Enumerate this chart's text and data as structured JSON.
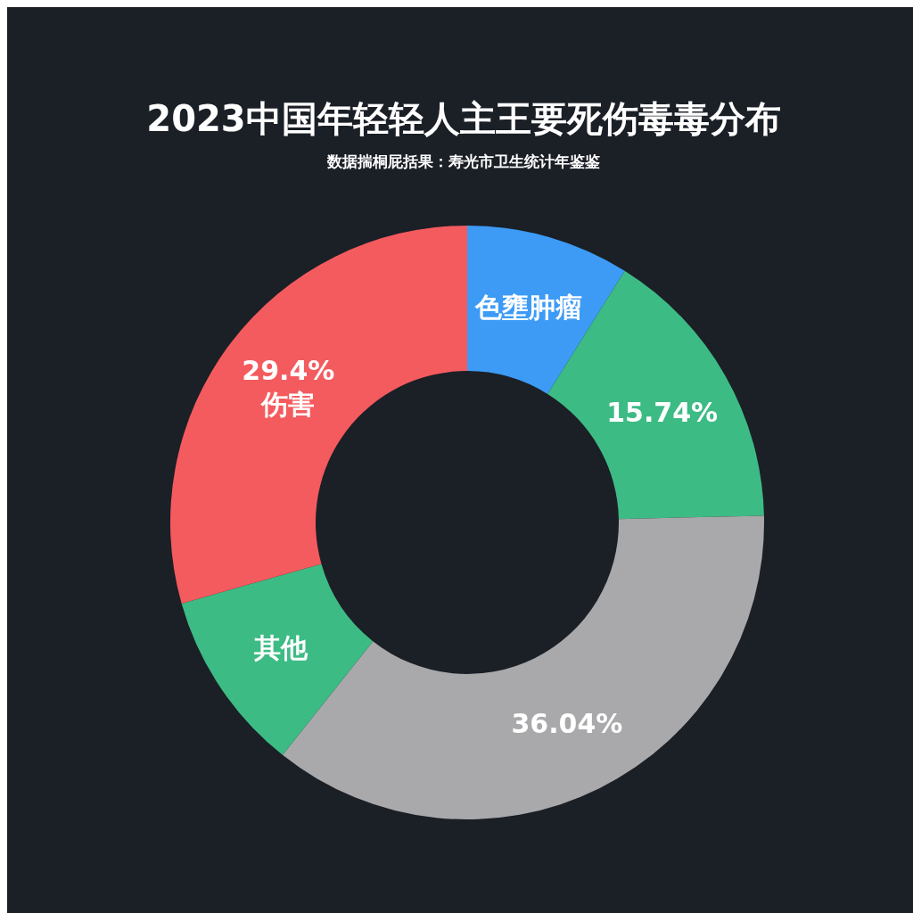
{
  "chart_data": {
    "type": "donut",
    "title": "2023中国年轻轻人主王要死伤毒毒分布",
    "subtitle": "数据揣桐屁括果：寿光市卫生统计年鉴鉴",
    "categories": [
      "色壅肿瘤",
      null,
      null,
      "其他",
      "伤害"
    ],
    "values": [
      8.9,
      15.74,
      36.04,
      9.92,
      29.4
    ],
    "value_labels": [
      null,
      "15.74%",
      "36.04%",
      null,
      "29.4%"
    ],
    "colors": [
      "#3d9bf5",
      "#3dbb84",
      "#a9a9ab",
      "#3dbb84",
      "#f45b5e"
    ],
    "legend": false
  }
}
